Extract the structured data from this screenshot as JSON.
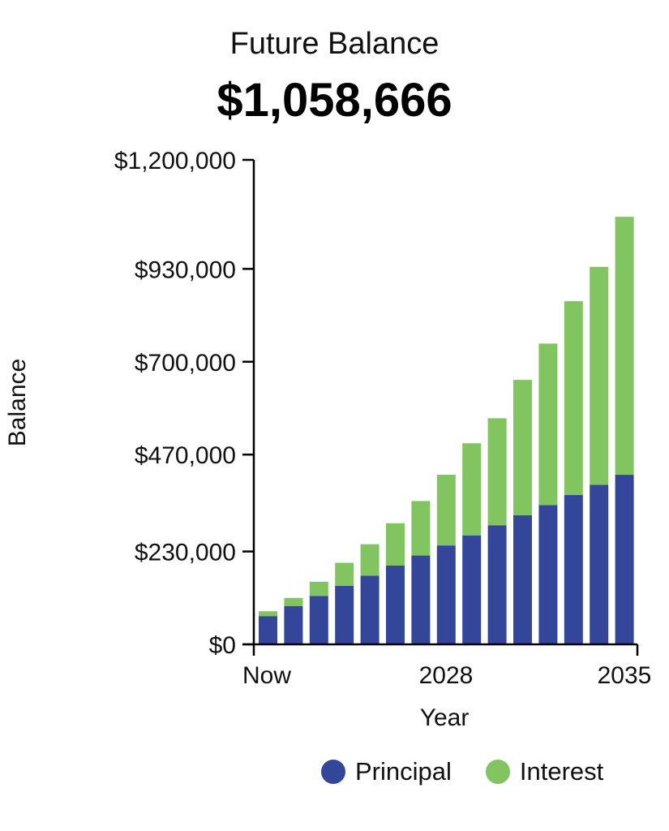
{
  "header": {
    "title": "Future Balance",
    "total": "$1,058,666"
  },
  "colors": {
    "principal": "#33469a",
    "interest": "#82c460",
    "axis": "#000000"
  },
  "chart_data": {
    "type": "bar",
    "stacked": true,
    "title": "Future Balance",
    "ylabel": "Balance",
    "xlabel": "Year",
    "ylim": [
      0,
      1200000
    ],
    "y_ticks": [
      {
        "value": 0,
        "label": "$0"
      },
      {
        "value": 230000,
        "label": "$230,000"
      },
      {
        "value": 470000,
        "label": "$470,000"
      },
      {
        "value": 700000,
        "label": "$700,000"
      },
      {
        "value": 930000,
        "label": "$930,000"
      },
      {
        "value": 1200000,
        "label": "$1,200,000"
      }
    ],
    "x_tick_labels": [
      {
        "index": 0,
        "label": "Now"
      },
      {
        "index": 7,
        "label": "2028"
      },
      {
        "index": 14,
        "label": "2035"
      }
    ],
    "categories": [
      "Now",
      "",
      "",
      "",
      "",
      "",
      "",
      "2028",
      "",
      "",
      "",
      "",
      "",
      "",
      "2035"
    ],
    "series": [
      {
        "name": "Principal",
        "values": [
          70000,
          95000,
          120000,
          145000,
          170000,
          195000,
          220000,
          245000,
          270000,
          295000,
          320000,
          345000,
          370000,
          395000,
          420000
        ]
      },
      {
        "name": "Interest",
        "values": [
          12000,
          20000,
          35000,
          57000,
          78000,
          105000,
          135000,
          175000,
          228000,
          265000,
          335000,
          400000,
          480000,
          540000,
          639000
        ]
      }
    ],
    "grid": false,
    "legend_position": "bottom-right"
  }
}
